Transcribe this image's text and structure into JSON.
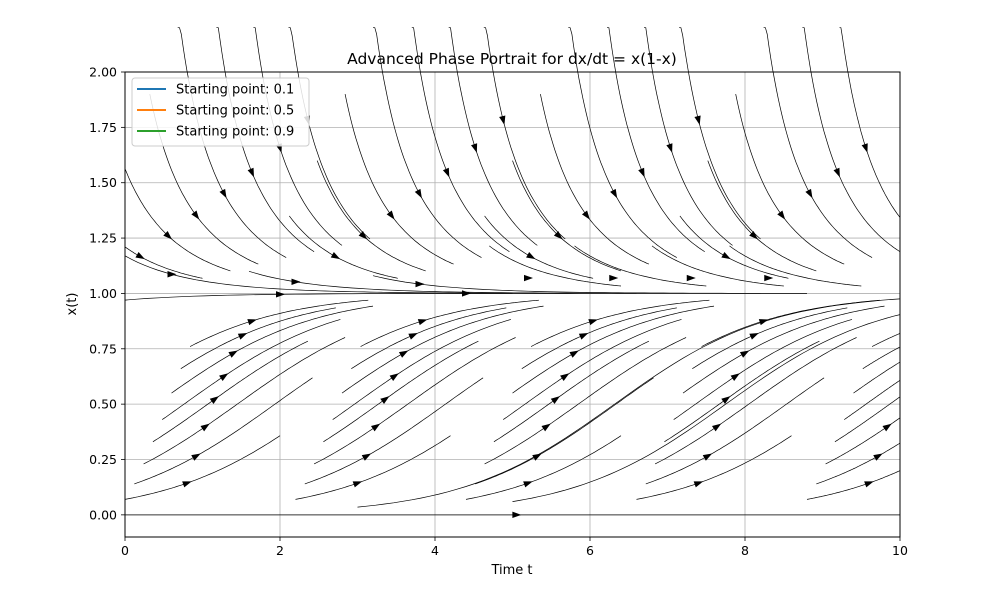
{
  "chart_data": {
    "type": "streamplot",
    "title": "Advanced Phase Portrait for dx/dt = x(1-x)",
    "xlabel": "Time t",
    "ylabel": "x(t)",
    "xlim": [
      0,
      10
    ],
    "ylim": [
      -0.1,
      2.0
    ],
    "xticks": [
      0,
      2,
      4,
      6,
      8,
      10
    ],
    "yticks": [
      0.0,
      0.25,
      0.5,
      0.75,
      1.0,
      1.25,
      1.5,
      1.75,
      2.0
    ],
    "xtick_labels": [
      "0",
      "2",
      "4",
      "6",
      "8",
      "10"
    ],
    "ytick_labels": [
      "0.00",
      "0.25",
      "0.50",
      "0.75",
      "1.00",
      "1.25",
      "1.50",
      "1.75",
      "2.00"
    ],
    "grid": true,
    "legend_position": "top-left",
    "series": [
      {
        "name": "Starting point: 0.1",
        "color": "#1f77b4"
      },
      {
        "name": "Starting point: 0.5",
        "color": "#ff7f0e"
      },
      {
        "name": "Starting point: 0.9",
        "color": "#2ca02c"
      }
    ],
    "equilibria": [
      0.0,
      1.0
    ],
    "streamline_color": "#000000"
  }
}
